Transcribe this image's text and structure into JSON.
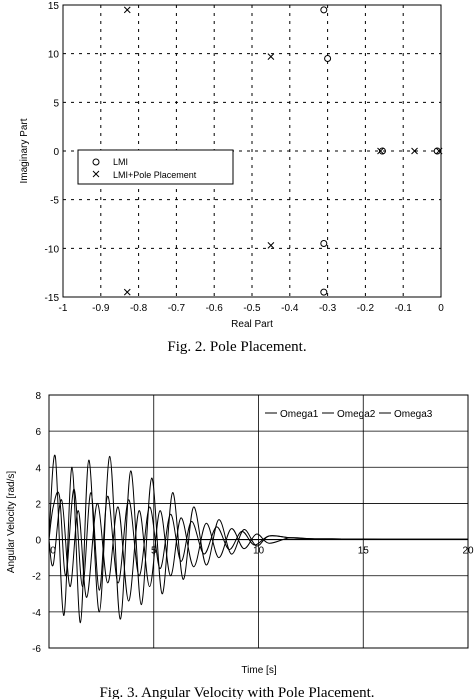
{
  "chart_data": [
    {
      "type": "scatter",
      "xlabel": "Real Part",
      "ylabel": "Imaginary Part",
      "xlim": [
        -1,
        0
      ],
      "ylim": [
        -15,
        15
      ],
      "xticks": [
        "-1",
        "-0.9",
        "-0.8",
        "-0.7",
        "-0.6",
        "-0.5",
        "-0.4",
        "-0.3",
        "-0.2",
        "-0.1",
        "0"
      ],
      "yticks": [
        "-15",
        "-10",
        "-5",
        "0",
        "5",
        "10",
        "15"
      ],
      "grid": "dashed",
      "legend_position": "center-left",
      "caption": "Fig. 2. Pole Placement.",
      "series": [
        {
          "name": "LMI",
          "marker": "circle",
          "points": [
            [
              -0.31,
              14.5
            ],
            [
              -0.3,
              9.5
            ],
            [
              -0.31,
              -9.5
            ],
            [
              -0.31,
              -14.5
            ],
            [
              -0.155,
              0
            ],
            [
              -0.01,
              0
            ]
          ]
        },
        {
          "name": "LMI+Pole Placement",
          "marker": "cross",
          "points": [
            [
              -0.83,
              14.5
            ],
            [
              -0.45,
              9.7
            ],
            [
              -0.45,
              -9.7
            ],
            [
              -0.83,
              -14.5
            ],
            [
              -0.16,
              0
            ],
            [
              -0.07,
              0
            ],
            [
              -0.005,
              0
            ]
          ]
        }
      ]
    },
    {
      "type": "line",
      "xlabel": "Time [s]",
      "ylabel": "Angular Velocity [rad/s]",
      "xlim": [
        0,
        20
      ],
      "ylim": [
        -6,
        8
      ],
      "xticks": [
        "0",
        "5",
        "10",
        "15",
        "20"
      ],
      "yticks": [
        "-6",
        "-4",
        "-2",
        "0",
        "2",
        "4",
        "6",
        "8"
      ],
      "grid": "solid",
      "legend_position": "top-right",
      "caption": "Fig. 3. Angular Velocity with Pole Placement.",
      "series": [
        {
          "name": "Omega1",
          "x": [
            0,
            0.2,
            0.5,
            0.8,
            1.2,
            1.6,
            2.0,
            2.4,
            2.8,
            3.3,
            3.8,
            4.3,
            4.8,
            5.3,
            5.8,
            6.3,
            6.8,
            7.4,
            8.0,
            8.6,
            9.2,
            9.8,
            10.5,
            11.5,
            12.5,
            14,
            16,
            18,
            20
          ],
          "values": [
            0,
            1.8,
            2.4,
            -2.0,
            2.8,
            -2.6,
            2.6,
            -2.8,
            2.4,
            -2.4,
            2.2,
            -2.0,
            1.8,
            -1.6,
            1.4,
            -1.2,
            1.0,
            -0.8,
            0.7,
            -0.55,
            0.45,
            -0.3,
            0.2,
            0.1,
            0.05,
            0.03,
            0.02,
            0.02,
            0.02
          ]
        },
        {
          "name": "Omega2",
          "x": [
            0,
            0.3,
            0.7,
            1.1,
            1.5,
            1.9,
            2.4,
            2.9,
            3.4,
            3.9,
            4.4,
            4.9,
            5.4,
            5.9,
            6.4,
            6.9,
            7.5,
            8.1,
            8.7,
            9.3,
            9.9,
            10.5,
            11.5,
            12.5,
            14,
            16,
            18,
            20
          ],
          "values": [
            0,
            4.6,
            -4.2,
            4.0,
            -4.6,
            4.4,
            -4.0,
            4.6,
            -4.4,
            3.8,
            -3.6,
            3.4,
            -3.0,
            2.6,
            -2.2,
            1.8,
            -1.4,
            1.1,
            -0.8,
            0.55,
            -0.35,
            0.2,
            0.1,
            0.05,
            0.03,
            0.02,
            0.02,
            0.02
          ]
        },
        {
          "name": "Omega3",
          "x": [
            0,
            0.2,
            0.6,
            1.0,
            1.4,
            1.8,
            2.3,
            2.8,
            3.3,
            3.8,
            4.3,
            4.8,
            5.3,
            5.8,
            6.3,
            6.9,
            7.5,
            8.1,
            8.7,
            9.3,
            9.9,
            10.5,
            11.5,
            12.5,
            14,
            16,
            18,
            20
          ],
          "values": [
            0,
            -1.4,
            2.2,
            -2.6,
            1.6,
            -3.2,
            2.0,
            -2.4,
            1.8,
            -3.4,
            1.6,
            -2.6,
            1.6,
            -2.0,
            1.2,
            -1.5,
            0.9,
            -1.0,
            0.6,
            -0.5,
            0.3,
            -0.2,
            0.1,
            0.05,
            0.03,
            0.02,
            0.02,
            0.02
          ]
        }
      ]
    }
  ]
}
